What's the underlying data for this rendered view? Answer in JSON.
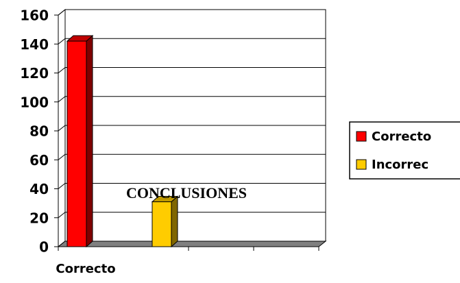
{
  "chart_data": {
    "type": "bar3d",
    "title": "CONCLUSIONES",
    "categories": [
      "Correcto"
    ],
    "series": [
      {
        "name": "Correcto",
        "color": "#ff0000",
        "values": [
          142
        ]
      },
      {
        "name": "Incorrec",
        "color": "#ffcc00",
        "values": [
          31
        ]
      }
    ],
    "ylim": [
      0,
      160
    ],
    "yticks": [
      0,
      20,
      40,
      60,
      80,
      100,
      120,
      140,
      160
    ],
    "grid": true,
    "legend": "right"
  }
}
